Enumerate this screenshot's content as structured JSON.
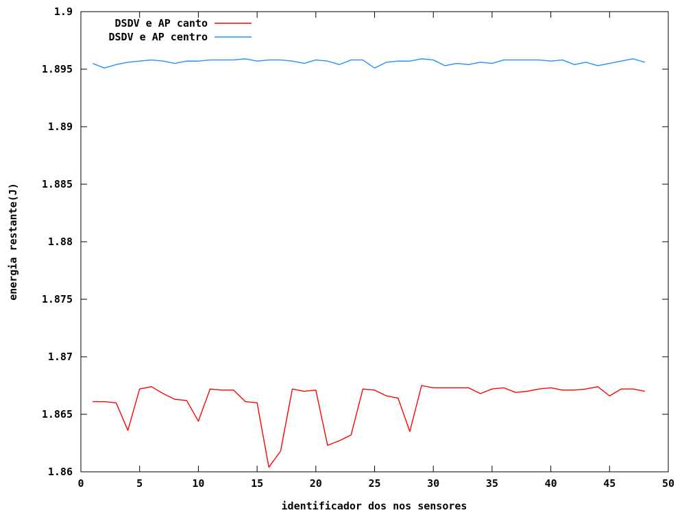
{
  "chart_data": {
    "type": "line",
    "title": "",
    "xlabel": "identificador dos nos sensores",
    "ylabel": "energia restante(J)",
    "xlim": [
      0,
      50
    ],
    "ylim": [
      1.86,
      1.9
    ],
    "x_ticks": [
      {
        "value": 0,
        "label": "0"
      },
      {
        "value": 5,
        "label": "5"
      },
      {
        "value": 10,
        "label": "10"
      },
      {
        "value": 15,
        "label": "15"
      },
      {
        "value": 20,
        "label": "20"
      },
      {
        "value": 25,
        "label": "25"
      },
      {
        "value": 30,
        "label": "30"
      },
      {
        "value": 35,
        "label": "35"
      },
      {
        "value": 40,
        "label": "40"
      },
      {
        "value": 45,
        "label": "45"
      },
      {
        "value": 50,
        "label": "50"
      }
    ],
    "y_ticks": [
      {
        "value": 1.86,
        "label": "1.86"
      },
      {
        "value": 1.865,
        "label": "1.865"
      },
      {
        "value": 1.87,
        "label": "1.87"
      },
      {
        "value": 1.875,
        "label": "1.875"
      },
      {
        "value": 1.88,
        "label": "1.88"
      },
      {
        "value": 1.885,
        "label": "1.885"
      },
      {
        "value": 1.89,
        "label": "1.89"
      },
      {
        "value": 1.895,
        "label": "1.895"
      },
      {
        "value": 1.9,
        "label": "1.9"
      }
    ],
    "grid": false,
    "legend_position": "top-left",
    "x": [
      1,
      2,
      3,
      4,
      5,
      6,
      7,
      8,
      9,
      10,
      11,
      12,
      13,
      14,
      15,
      16,
      17,
      18,
      19,
      20,
      21,
      22,
      23,
      24,
      25,
      26,
      27,
      28,
      29,
      30,
      31,
      32,
      33,
      34,
      35,
      36,
      37,
      38,
      39,
      40,
      41,
      42,
      43,
      44,
      45,
      46,
      47,
      48
    ],
    "series": [
      {
        "name": "DSDV e AP canto",
        "color": "#ff0000",
        "values": [
          1.8661,
          1.8661,
          1.866,
          1.8636,
          1.8672,
          1.8674,
          1.8668,
          1.8663,
          1.8662,
          1.8644,
          1.8672,
          1.8671,
          1.8671,
          1.8661,
          1.866,
          1.8604,
          1.8618,
          1.8672,
          1.867,
          1.8671,
          1.8623,
          1.8627,
          1.8632,
          1.8672,
          1.8671,
          1.8666,
          1.8664,
          1.8635,
          1.8675,
          1.8673,
          1.8673,
          1.8673,
          1.8673,
          1.8668,
          1.8672,
          1.8673,
          1.8669,
          1.867,
          1.8672,
          1.8673,
          1.8671,
          1.8671,
          1.8672,
          1.8674,
          1.8666,
          1.8672,
          1.8672,
          1.867
        ]
      },
      {
        "name": "DSDV e AP centro",
        "color": "#1e90ff",
        "values": [
          1.8955,
          1.8951,
          1.8954,
          1.8956,
          1.8957,
          1.8958,
          1.8957,
          1.8955,
          1.8957,
          1.8957,
          1.8958,
          1.8958,
          1.8958,
          1.8959,
          1.8957,
          1.8958,
          1.8958,
          1.8957,
          1.8955,
          1.8958,
          1.8957,
          1.8954,
          1.8958,
          1.8958,
          1.8951,
          1.8956,
          1.8957,
          1.8957,
          1.8959,
          1.8958,
          1.8953,
          1.8955,
          1.8954,
          1.8956,
          1.8955,
          1.8958,
          1.8958,
          1.8958,
          1.8958,
          1.8957,
          1.8958,
          1.8954,
          1.8956,
          1.8953,
          1.8955,
          1.8957,
          1.8959,
          1.8956
        ]
      }
    ]
  }
}
